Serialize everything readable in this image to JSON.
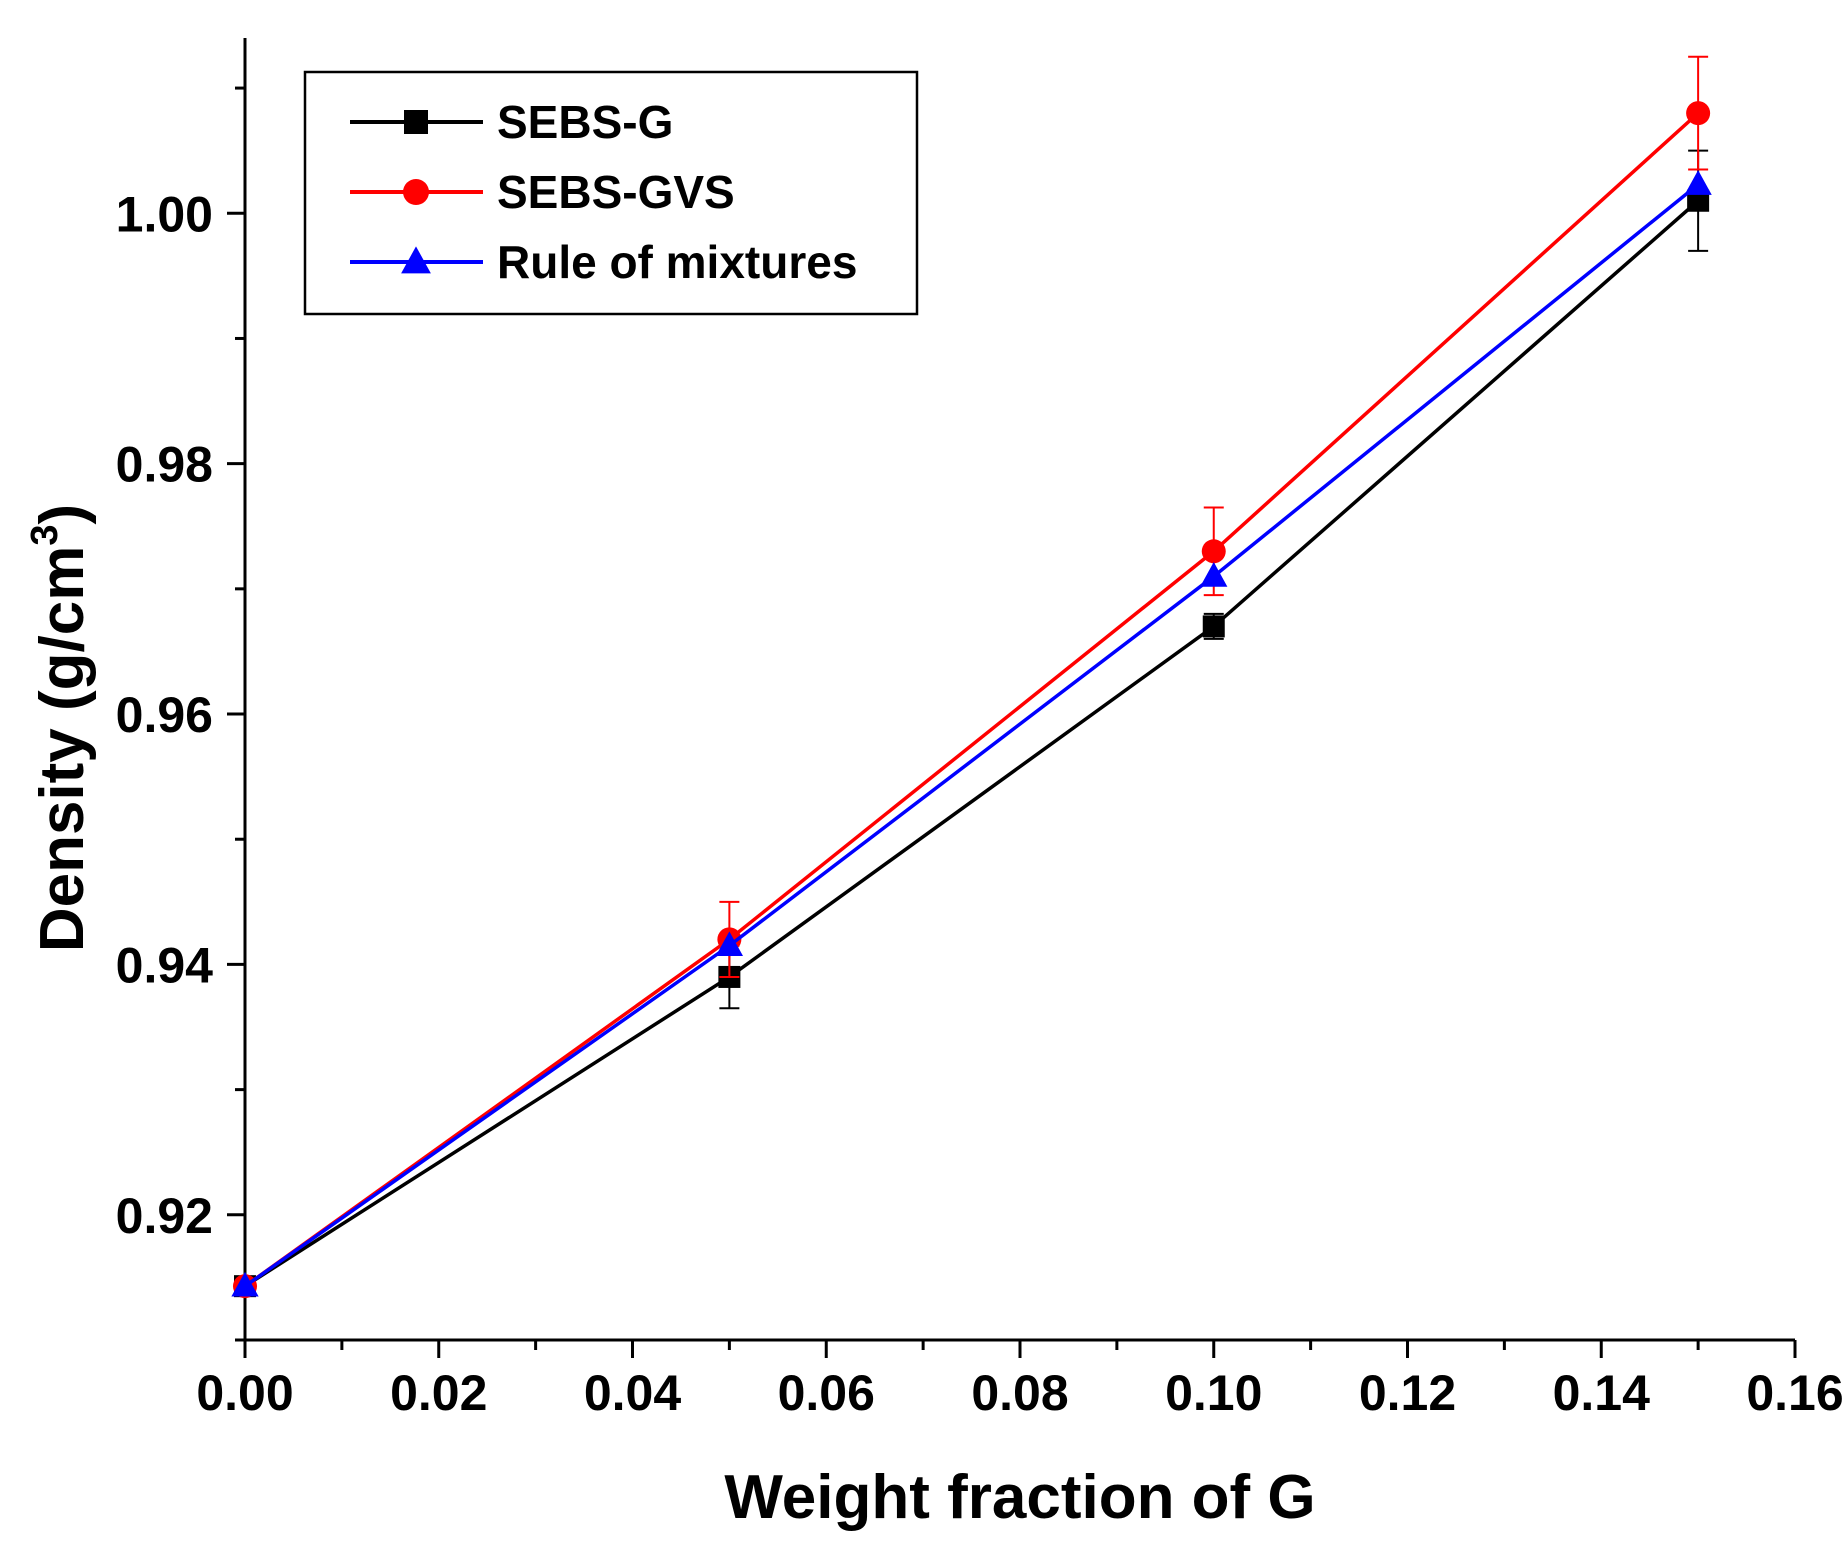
{
  "chart_data": {
    "type": "line",
    "xlabel": "Weight fraction of G",
    "ylabel_main": "Density (g/cm",
    "ylabel_sup": "3",
    "ylabel_close": ")",
    "xlim": [
      0.0,
      0.16
    ],
    "ylim": [
      0.91,
      1.014
    ],
    "x_ticks": [
      0.0,
      0.02,
      0.04,
      0.06,
      0.08,
      0.1,
      0.12,
      0.14,
      0.16
    ],
    "x_tick_labels": [
      "0.00",
      "0.02",
      "0.04",
      "0.06",
      "0.08",
      "0.10",
      "0.12",
      "0.14",
      "0.16"
    ],
    "y_ticks": [
      0.92,
      0.94,
      0.96,
      0.98,
      1.0
    ],
    "y_tick_labels": [
      "0.92",
      "0.94",
      "0.96",
      "0.98",
      "1.00"
    ],
    "legend_position": "top-left",
    "series": [
      {
        "name": "SEBS-G",
        "color": "#000000",
        "marker": "square",
        "x": [
          0.0,
          0.05,
          0.1,
          0.15
        ],
        "y": [
          0.9143,
          0.939,
          0.967,
          1.001
        ],
        "err": [
          0.0,
          0.0025,
          0.001,
          0.004
        ]
      },
      {
        "name": "SEBS-GVS",
        "color": "#ff0000",
        "marker": "circle",
        "x": [
          0.0,
          0.05,
          0.1,
          0.15
        ],
        "y": [
          0.9143,
          0.942,
          0.973,
          1.008
        ],
        "err": [
          0.0,
          0.003,
          0.0035,
          0.0045
        ]
      },
      {
        "name": "Rule of mixtures",
        "color": "#0000ff",
        "marker": "triangle",
        "x": [
          0.0,
          0.05,
          0.1,
          0.15
        ],
        "y": [
          0.9143,
          0.9415,
          0.971,
          1.0023
        ],
        "err": []
      }
    ]
  }
}
